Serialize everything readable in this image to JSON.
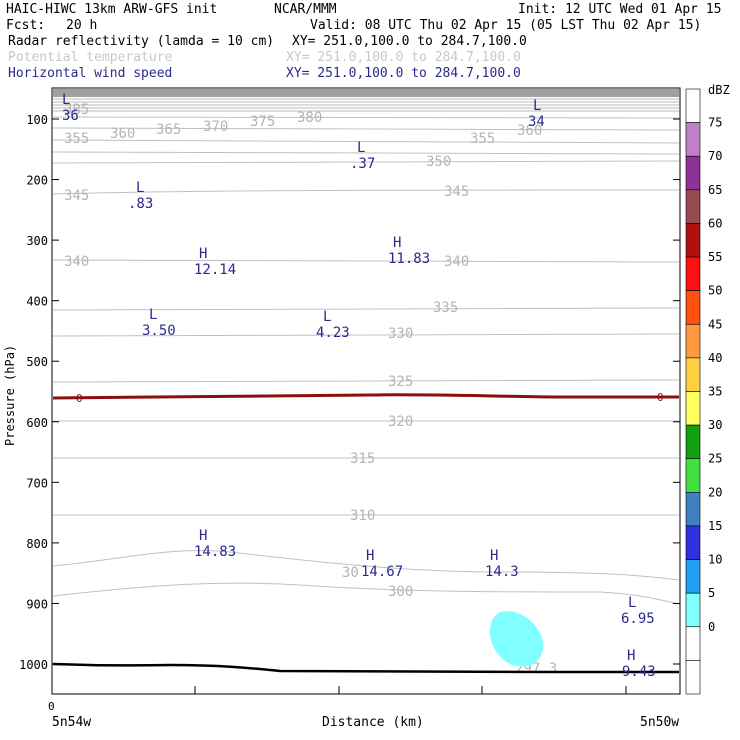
{
  "header": {
    "model": "HAIC-HIWC 13km ARW-GFS init",
    "org": "NCAR/MMM",
    "init": "Init: 12 UTC Wed 01 Apr 15",
    "fcst_label": "Fcst:",
    "fcst_value": "20 h",
    "valid": "Valid: 08 UTC Thu 02 Apr 15 (05 LST Thu 02 Apr 15)",
    "fields": [
      {
        "name": "Radar reflectivity (lamda = 10 cm)",
        "xy": "XY= 251.0,100.0 to 284.7,100.0",
        "color": "#000000"
      },
      {
        "name": "Potential temperature",
        "xy": "XY= 251.0,100.0 to 284.7,100.0",
        "color": "#c8c8c8"
      },
      {
        "name": "Horizontal wind speed",
        "xy": "XY= 251.0,100.0 to 284.7,100.0",
        "color": "#2a2a8c"
      }
    ]
  },
  "chart_data": {
    "type": "contour-cross-section",
    "ylabel": "Pressure (hPa)",
    "xlabel": "Distance (km)",
    "y_ticks": [
      100,
      200,
      300,
      400,
      500,
      600,
      700,
      800,
      900,
      1000
    ],
    "ylim": [
      1050,
      50
    ],
    "y_scale": "linear",
    "x_tick_label": "0",
    "x_left_label": "5n54w",
    "x_right_label": "5n50w",
    "theta_contour_labels": [
      "385",
      "360",
      "365",
      "370",
      "375",
      "380",
      "355",
      "360",
      "350",
      "355",
      "345",
      "345",
      "340",
      "340",
      "335",
      "330",
      "325",
      "320",
      "315",
      "310",
      "30",
      "300",
      "297.3"
    ],
    "wind_extrema": [
      {
        "type": "L",
        "value": "36"
      },
      {
        "type": "L",
        "value": "34"
      },
      {
        "type": "L",
        "value": ".37"
      },
      {
        "type": "L",
        "value": ".83"
      },
      {
        "type": "H",
        "value": "12.14"
      },
      {
        "type": "H",
        "value": "11.83"
      },
      {
        "type": "L",
        "value": "3.50"
      },
      {
        "type": "L",
        "value": "4.23"
      },
      {
        "type": "H",
        "value": "14.83"
      },
      {
        "type": "H",
        "value": "14.67"
      },
      {
        "type": "H",
        "value": "14.3"
      },
      {
        "type": "L",
        "value": "6.95"
      },
      {
        "type": "H",
        "value": "9.43"
      }
    ],
    "freezing_level_label": "0",
    "freezing_level_hpa": 560,
    "surface_hpa": 1010,
    "reflectivity_blob": {
      "dbz_range": "5-10",
      "color": "#80ffff"
    },
    "colorbar": {
      "units": "dBZ",
      "ticks": [
        "75",
        "70",
        "65",
        "60",
        "55",
        "50",
        "45",
        "40",
        "35",
        "30",
        "25",
        "20",
        "15",
        "10",
        "5",
        "0"
      ],
      "colors": [
        "#ffffff",
        "#c080c8",
        "#903098",
        "#9c4a52",
        "#b01010",
        "#ff1010",
        "#ff5010",
        "#ff9a40",
        "#ffd040",
        "#ffff60",
        "#10a010",
        "#40e040",
        "#4080c0",
        "#3030e0",
        "#20a0f0",
        "#80ffff",
        "#ffffff",
        "#ffffff"
      ]
    }
  }
}
